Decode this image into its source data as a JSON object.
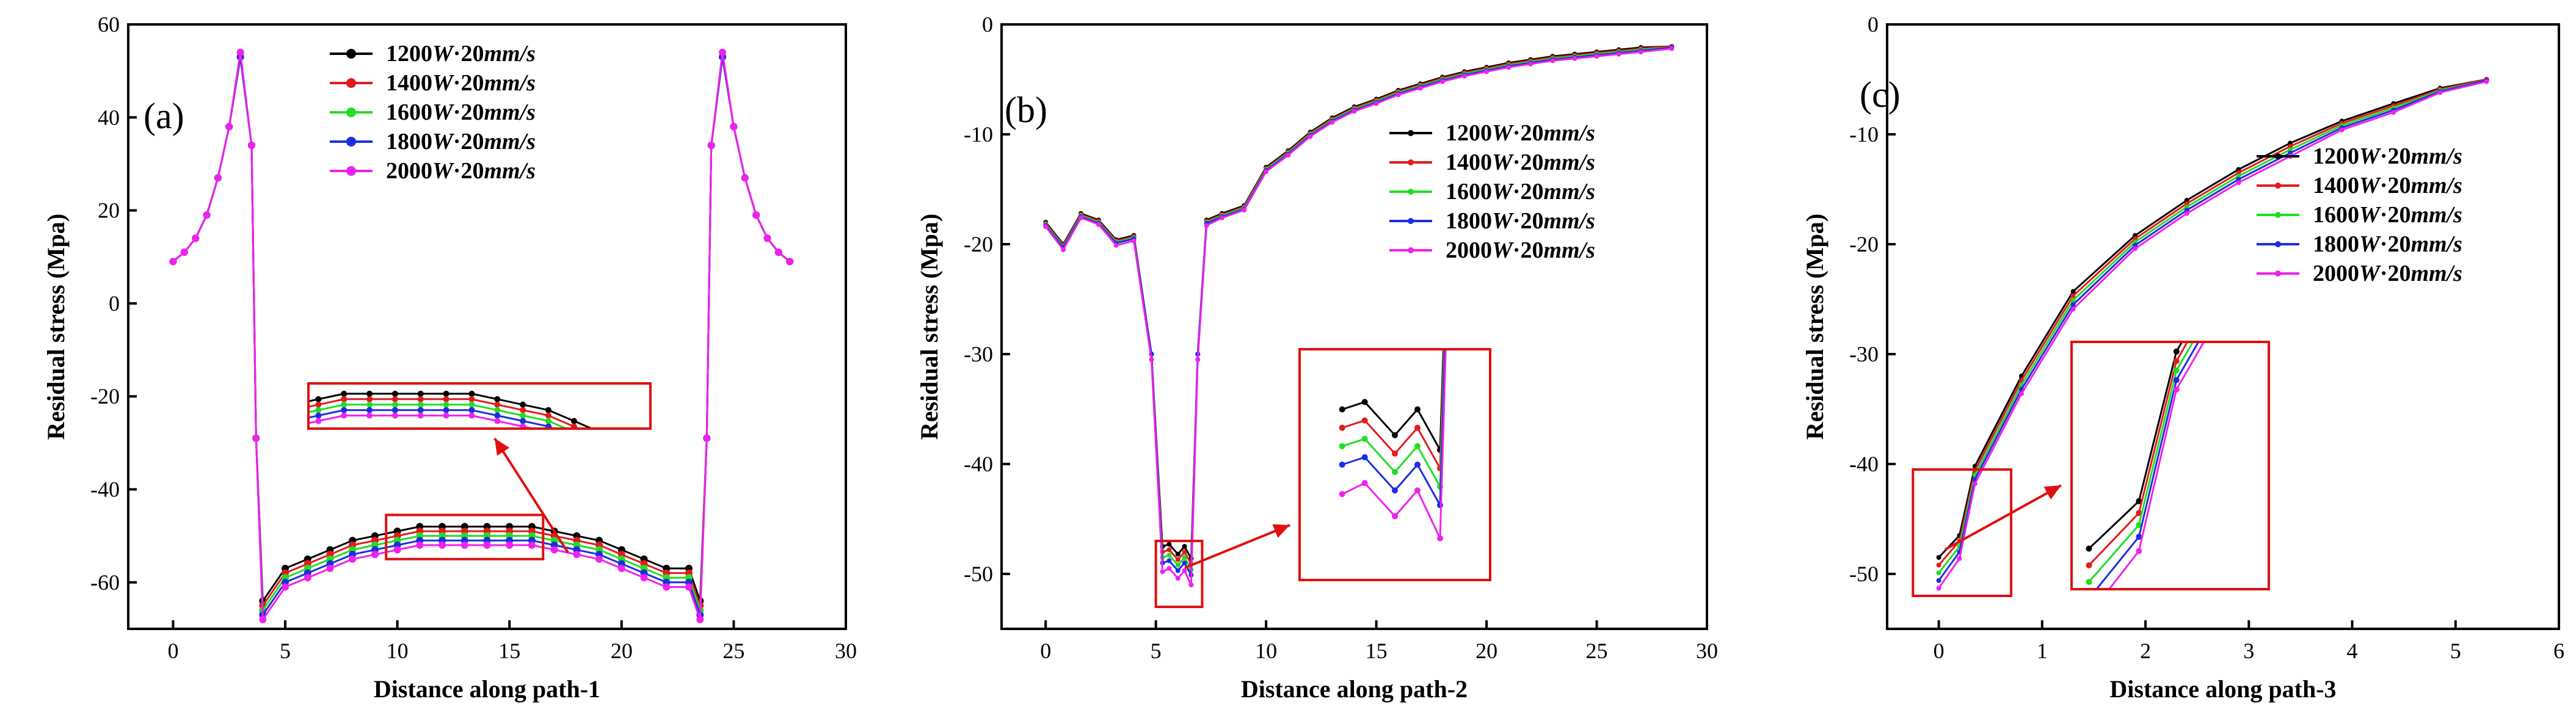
{
  "chart_data": [
    {
      "type": "line",
      "panel_label": "(a)",
      "xlabel": "Distance along path-1",
      "ylabel": "Residual stress (Mpa)",
      "xlim": [
        -2,
        30
      ],
      "ylim": [
        -70,
        60
      ],
      "xticks": [
        0,
        5,
        10,
        15,
        20,
        25,
        30
      ],
      "yticks": [
        -60,
        -40,
        -20,
        0,
        20,
        40,
        60
      ],
      "legend": [
        "1200W·20mm/s",
        "1400W·20mm/s",
        "1600W·20mm/s",
        "1800W·20mm/s",
        "2000W·20mm/s"
      ],
      "series": [
        {
          "name": "1200W·20mm/s",
          "color": "#000000",
          "x": [
            0,
            0.5,
            1,
            1.5,
            2,
            2.5,
            3,
            3.5,
            3.7,
            4,
            5,
            6,
            7,
            8,
            9,
            10,
            11,
            12,
            13,
            14,
            15,
            16,
            17,
            18,
            19,
            20,
            21,
            22,
            23,
            23.5,
            23.8,
            24,
            24.5,
            25,
            25.5,
            26,
            26.5,
            27,
            27.5
          ],
          "y": [
            9,
            11,
            14,
            19,
            27,
            38,
            53,
            34,
            -29,
            -64,
            -57,
            -55,
            -53,
            -51,
            -50,
            -49,
            -48,
            -48,
            -48,
            -48,
            -48,
            -48,
            -49,
            -50,
            -51,
            -53,
            -55,
            -57,
            -57,
            -64,
            -29,
            34,
            53,
            38,
            27,
            19,
            14,
            11,
            9
          ]
        },
        {
          "name": "1400W·20mm/s",
          "color": "#e41a1c",
          "x": [
            0,
            0.5,
            1,
            1.5,
            2,
            2.5,
            3,
            3.5,
            3.7,
            4,
            5,
            6,
            7,
            8,
            9,
            10,
            11,
            12,
            13,
            14,
            15,
            16,
            17,
            18,
            19,
            20,
            21,
            22,
            23,
            23.5,
            23.8,
            24,
            24.5,
            25,
            25.5,
            26,
            26.5,
            27,
            27.5
          ],
          "y": [
            9,
            11,
            14,
            19,
            27,
            38,
            53,
            34,
            -29,
            -65,
            -58,
            -56,
            -54,
            -52,
            -51,
            -50,
            -49,
            -49,
            -49,
            -49,
            -49,
            -49,
            -50,
            -51,
            -52,
            -54,
            -56,
            -58,
            -58,
            -65,
            -29,
            34,
            53,
            38,
            27,
            19,
            14,
            11,
            9
          ]
        },
        {
          "name": "1600W·20mm/s",
          "color": "#22dd22",
          "x": [
            0,
            0.5,
            1,
            1.5,
            2,
            2.5,
            3,
            3.5,
            3.7,
            4,
            5,
            6,
            7,
            8,
            9,
            10,
            11,
            12,
            13,
            14,
            15,
            16,
            17,
            18,
            19,
            20,
            21,
            22,
            23,
            23.5,
            23.8,
            24,
            24.5,
            25,
            25.5,
            26,
            26.5,
            27,
            27.5
          ],
          "y": [
            9,
            11,
            14,
            19,
            27,
            38,
            53,
            34,
            -29,
            -66,
            -59,
            -57,
            -55,
            -53,
            -52,
            -51,
            -50,
            -50,
            -50,
            -50,
            -50,
            -50,
            -51,
            -52,
            -53,
            -55,
            -57,
            -59,
            -59,
            -66,
            -29,
            34,
            53,
            38,
            27,
            19,
            14,
            11,
            9
          ]
        },
        {
          "name": "1800W·20mm/s",
          "color": "#1c2ee0",
          "x": [
            0,
            0.5,
            1,
            1.5,
            2,
            2.5,
            3,
            3.5,
            3.7,
            4,
            5,
            6,
            7,
            8,
            9,
            10,
            11,
            12,
            13,
            14,
            15,
            16,
            17,
            18,
            19,
            20,
            21,
            22,
            23,
            23.5,
            23.8,
            24,
            24.5,
            25,
            25.5,
            26,
            26.5,
            27,
            27.5
          ],
          "y": [
            9,
            11,
            14,
            19,
            27,
            38,
            53,
            34,
            -29,
            -67,
            -60,
            -58,
            -56,
            -54,
            -53,
            -52,
            -51,
            -51,
            -51,
            -51,
            -51,
            -51,
            -52,
            -53,
            -54,
            -56,
            -58,
            -60,
            -60,
            -67,
            -29,
            34,
            53,
            38,
            27,
            19,
            14,
            11,
            9
          ]
        },
        {
          "name": "2000W·20mm/s",
          "color": "#ee22ee",
          "x": [
            0,
            0.5,
            1,
            1.5,
            2,
            2.5,
            3,
            3.5,
            3.7,
            4,
            5,
            6,
            7,
            8,
            9,
            10,
            11,
            12,
            13,
            14,
            15,
            16,
            17,
            18,
            19,
            20,
            21,
            22,
            23,
            23.5,
            23.8,
            24,
            24.5,
            25,
            25.5,
            26,
            26.5,
            27,
            27.5
          ],
          "y": [
            9,
            11,
            14,
            19,
            27,
            38,
            54,
            34,
            -29,
            -68,
            -61,
            -59,
            -57,
            -55,
            -54,
            -53,
            -52,
            -52,
            -52,
            -52,
            -52,
            -52,
            -53,
            -54,
            -55,
            -57,
            -59,
            -61,
            -61,
            -68,
            -29,
            34,
            54,
            38,
            27,
            19,
            14,
            11,
            9
          ]
        }
      ]
    },
    {
      "type": "line",
      "panel_label": "(b)",
      "xlabel": "Distance along path-2",
      "ylabel": "Residual stress (Mpa)",
      "xlim": [
        -2,
        30
      ],
      "ylim": [
        -55,
        0
      ],
      "xticks": [
        0,
        5,
        10,
        15,
        20,
        25,
        30
      ],
      "yticks": [
        -50,
        -40,
        -30,
        -20,
        -10,
        0
      ],
      "legend": [
        "1200W·20mm/s",
        "1400W·20mm/s",
        "1600W·20mm/s",
        "1800W·20mm/s",
        "2000W·20mm/s"
      ],
      "series": [
        {
          "name": "1200W·20mm/s",
          "color": "#000000",
          "x": [
            0,
            0.8,
            1.6,
            2.4,
            3.2,
            4,
            4.8,
            5.3,
            5.6,
            6,
            6.3,
            6.6,
            6.9,
            7.3,
            8,
            9,
            10,
            11,
            12,
            13,
            14,
            15,
            16,
            17,
            18,
            19,
            20,
            21,
            22,
            23,
            24,
            25,
            26,
            27,
            28.4
          ],
          "y": [
            -18,
            -20,
            -17.2,
            -17.8,
            -19.6,
            -19.2,
            -30,
            -47.5,
            -47.3,
            -48.2,
            -47.5,
            -48.6,
            -30,
            -17.8,
            -17.2,
            -16.5,
            -13,
            -11.5,
            -9.8,
            -8.5,
            -7.5,
            -6.8,
            -6,
            -5.4,
            -4.8,
            -4.3,
            -3.9,
            -3.5,
            -3.2,
            -2.9,
            -2.7,
            -2.5,
            -2.3,
            -2.1,
            -2
          ]
        },
        {
          "name": "1400W·20mm/s",
          "color": "#e41a1c",
          "x": [
            0,
            0.8,
            1.6,
            2.4,
            3.2,
            4,
            4.8,
            5.3,
            5.6,
            6,
            6.3,
            6.6,
            6.9,
            7.3,
            8,
            9,
            10,
            11,
            12,
            13,
            14,
            15,
            16,
            17,
            18,
            19,
            20,
            21,
            22,
            23,
            24,
            25,
            26,
            27,
            28.4
          ],
          "y": [
            -18.1,
            -20.1,
            -17.3,
            -17.9,
            -19.7,
            -19.3,
            -30,
            -48,
            -47.8,
            -48.7,
            -48,
            -49.1,
            -30,
            -17.9,
            -17.3,
            -16.6,
            -13.1,
            -11.6,
            -9.9,
            -8.6,
            -7.6,
            -6.9,
            -6.1,
            -5.5,
            -4.9,
            -4.4,
            -4,
            -3.6,
            -3.3,
            -3,
            -2.8,
            -2.6,
            -2.4,
            -2.2,
            -2
          ]
        },
        {
          "name": "1600W·20mm/s",
          "color": "#22dd22",
          "x": [
            0,
            0.8,
            1.6,
            2.4,
            3.2,
            4,
            4.8,
            5.3,
            5.6,
            6,
            6.3,
            6.6,
            6.9,
            7.3,
            8,
            9,
            10,
            11,
            12,
            13,
            14,
            15,
            16,
            17,
            18,
            19,
            20,
            21,
            22,
            23,
            24,
            25,
            26,
            27,
            28.4
          ],
          "y": [
            -18.2,
            -20.2,
            -17.4,
            -18,
            -19.8,
            -19.4,
            -30,
            -48.5,
            -48.3,
            -49.2,
            -48.5,
            -49.6,
            -30,
            -18,
            -17.4,
            -16.7,
            -13.2,
            -11.7,
            -10,
            -8.7,
            -7.7,
            -7,
            -6.2,
            -5.6,
            -5,
            -4.5,
            -4.1,
            -3.7,
            -3.4,
            -3.1,
            -2.9,
            -2.7,
            -2.5,
            -2.3,
            -2.1
          ]
        },
        {
          "name": "1800W·20mm/s",
          "color": "#1c2ee0",
          "x": [
            0,
            0.8,
            1.6,
            2.4,
            3.2,
            4,
            4.8,
            5.3,
            5.6,
            6,
            6.3,
            6.6,
            6.9,
            7.3,
            8,
            9,
            10,
            11,
            12,
            13,
            14,
            15,
            16,
            17,
            18,
            19,
            20,
            21,
            22,
            23,
            24,
            25,
            26,
            27,
            28.4
          ],
          "y": [
            -18.3,
            -20.3,
            -17.5,
            -18.1,
            -19.9,
            -19.5,
            -30,
            -49,
            -48.8,
            -49.7,
            -49,
            -50.1,
            -30,
            -18.1,
            -17.5,
            -16.8,
            -13.3,
            -11.8,
            -10.1,
            -8.8,
            -7.8,
            -7.1,
            -6.3,
            -5.7,
            -5.1,
            -4.6,
            -4.2,
            -3.8,
            -3.5,
            -3.2,
            -3,
            -2.8,
            -2.6,
            -2.4,
            -2.1
          ]
        },
        {
          "name": "2000W·20mm/s",
          "color": "#ee22ee",
          "x": [
            0,
            0.8,
            1.6,
            2.4,
            3.2,
            4,
            4.8,
            5.3,
            5.6,
            6,
            6.3,
            6.6,
            6.9,
            7.3,
            8,
            9,
            10,
            11,
            12,
            13,
            14,
            15,
            16,
            17,
            18,
            19,
            20,
            21,
            22,
            23,
            24,
            25,
            26,
            27,
            28.4
          ],
          "y": [
            -18.4,
            -20.5,
            -17.6,
            -18.2,
            -20.1,
            -19.7,
            -30.5,
            -49.8,
            -49.5,
            -50.4,
            -49.7,
            -51,
            -30.5,
            -18.3,
            -17.6,
            -16.9,
            -13.4,
            -11.9,
            -10.2,
            -8.9,
            -7.9,
            -7.2,
            -6.4,
            -5.8,
            -5.2,
            -4.7,
            -4.3,
            -3.9,
            -3.6,
            -3.3,
            -3.1,
            -2.9,
            -2.7,
            -2.5,
            -2.2
          ]
        }
      ]
    },
    {
      "type": "line",
      "panel_label": "(c)",
      "xlabel": "Distance along path-3",
      "ylabel": "Residual stress (Mpa)",
      "xlim": [
        -0.5,
        6
      ],
      "ylim": [
        -55,
        0
      ],
      "xticks": [
        0,
        1,
        2,
        3,
        4,
        5,
        6
      ],
      "yticks": [
        -50,
        -40,
        -30,
        -20,
        -10,
        0
      ],
      "legend": [
        "1200W·20mm/s",
        "1400W·20mm/s",
        "1600W·20mm/s",
        "1800W·20mm/s",
        "2000W·20mm/s"
      ],
      "series": [
        {
          "name": "1200W·20mm/s",
          "color": "#000000",
          "x": [
            0,
            0.2,
            0.35,
            0.8,
            1.3,
            1.9,
            2.4,
            2.9,
            3.4,
            3.9,
            4.4,
            4.85,
            5.3
          ],
          "y": [
            -48.5,
            -46.5,
            -40.2,
            -32,
            -24.3,
            -19.2,
            -16,
            -13.2,
            -10.8,
            -8.8,
            -7.2,
            -5.8,
            -5
          ]
        },
        {
          "name": "1400W·20mm/s",
          "color": "#e41a1c",
          "x": [
            0,
            0.2,
            0.35,
            0.8,
            1.3,
            1.9,
            2.4,
            2.9,
            3.4,
            3.9,
            4.4,
            4.85,
            5.3
          ],
          "y": [
            -49.2,
            -47,
            -40.6,
            -32.4,
            -24.7,
            -19.5,
            -16.3,
            -13.5,
            -11.1,
            -9,
            -7.4,
            -5.9,
            -5
          ]
        },
        {
          "name": "1600W·20mm/s",
          "color": "#22dd22",
          "x": [
            0,
            0.2,
            0.35,
            0.8,
            1.3,
            1.9,
            2.4,
            2.9,
            3.4,
            3.9,
            4.4,
            4.85,
            5.3
          ],
          "y": [
            -49.9,
            -47.5,
            -41,
            -32.8,
            -25.1,
            -19.8,
            -16.6,
            -13.8,
            -11.4,
            -9.2,
            -7.6,
            -6,
            -5.1
          ]
        },
        {
          "name": "1800W·20mm/s",
          "color": "#1c2ee0",
          "x": [
            0,
            0.2,
            0.35,
            0.8,
            1.3,
            1.9,
            2.4,
            2.9,
            3.4,
            3.9,
            4.4,
            4.85,
            5.3
          ],
          "y": [
            -50.6,
            -48,
            -41.4,
            -33.2,
            -25.5,
            -20.1,
            -16.9,
            -14.1,
            -11.7,
            -9.4,
            -7.8,
            -6.1,
            -5.1
          ]
        },
        {
          "name": "2000W·20mm/s",
          "color": "#ee22ee",
          "x": [
            0,
            0.2,
            0.35,
            0.8,
            1.3,
            1.9,
            2.4,
            2.9,
            3.4,
            3.9,
            4.4,
            4.85,
            5.3
          ],
          "y": [
            -51.3,
            -48.6,
            -41.8,
            -33.6,
            -25.9,
            -20.4,
            -17.2,
            -14.4,
            -12,
            -9.6,
            -8,
            -6.2,
            -5.2
          ]
        }
      ]
    }
  ]
}
